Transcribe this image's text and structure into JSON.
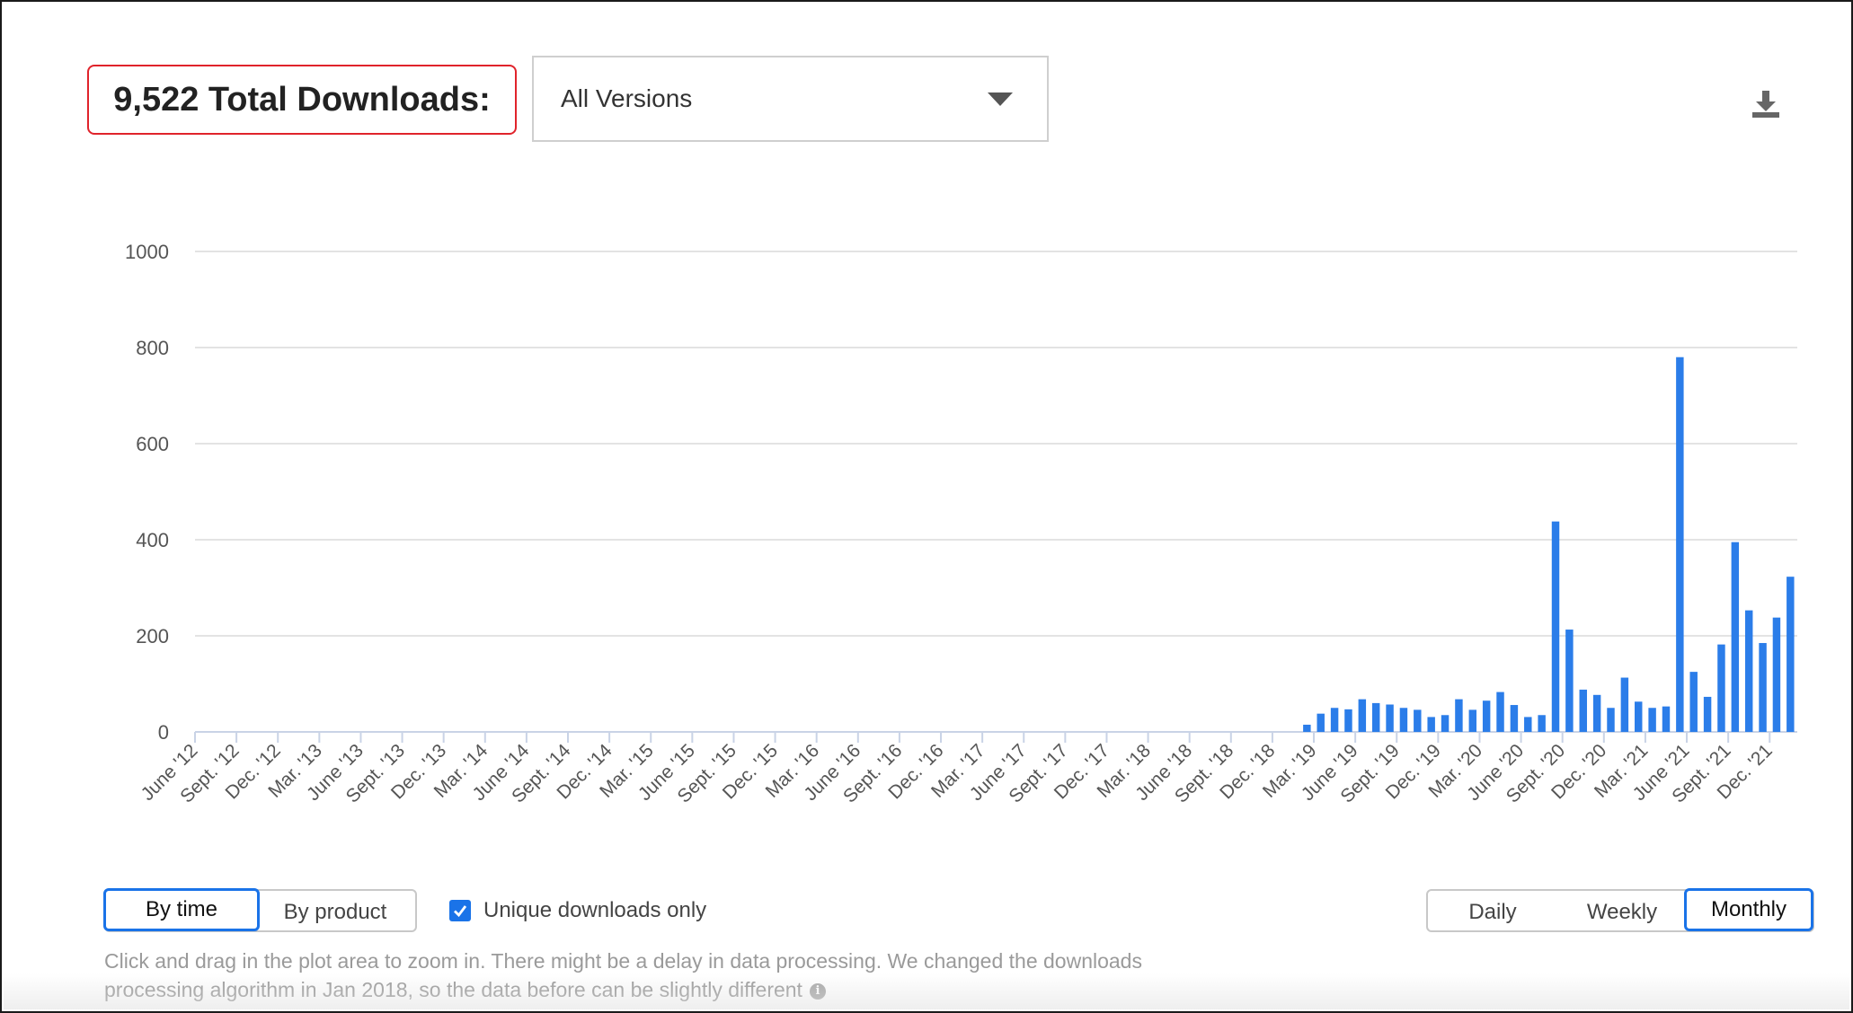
{
  "header": {
    "total_downloads": "9,522 Total Downloads:",
    "version_select": "All Versions",
    "download_icon": "download-icon"
  },
  "chart_data": {
    "type": "bar",
    "title": "",
    "xlabel": "",
    "ylabel": "",
    "ylim": [
      0,
      1000
    ],
    "y_ticks": [
      "0",
      "200",
      "400",
      "600",
      "800",
      "1000"
    ],
    "grid": true,
    "bar_color": "#2b7de9",
    "x_tick_labels": [
      "June '12",
      "Sept. '12",
      "Dec. '12",
      "Mar. '13",
      "June '13",
      "Sept. '13",
      "Dec. '13",
      "Mar. '14",
      "June '14",
      "Sept. '14",
      "Dec. '14",
      "Mar. '15",
      "June '15",
      "Sept. '15",
      "Dec. '15",
      "Mar. '16",
      "June '16",
      "Sept. '16",
      "Dec. '16",
      "Mar. '17",
      "June '17",
      "Sept. '17",
      "Dec. '17",
      "Mar. '18",
      "June '18",
      "Sept. '18",
      "Dec. '18",
      "Mar. '19",
      "June '19",
      "Sept. '19",
      "Dec. '19",
      "Mar. '20",
      "June '20",
      "Sept. '20",
      "Dec. '20",
      "Mar. '21",
      "June '21",
      "Sept. '21",
      "Dec. '21"
    ],
    "values": [
      0,
      0,
      0,
      0,
      0,
      0,
      0,
      0,
      0,
      0,
      0,
      0,
      0,
      0,
      0,
      0,
      0,
      0,
      0,
      0,
      0,
      0,
      0,
      0,
      0,
      0,
      0,
      0,
      0,
      0,
      0,
      0,
      0,
      0,
      0,
      0,
      0,
      0,
      0,
      0,
      0,
      0,
      0,
      0,
      0,
      0,
      0,
      0,
      0,
      0,
      0,
      0,
      0,
      0,
      0,
      0,
      0,
      0,
      0,
      0,
      0,
      0,
      0,
      0,
      0,
      0,
      0,
      0,
      0,
      0,
      0,
      0,
      0,
      0,
      0,
      0,
      0,
      0,
      0,
      0,
      15,
      38,
      50,
      47,
      68,
      60,
      57,
      50,
      46,
      31,
      35,
      68,
      46,
      65,
      83,
      56,
      31,
      35,
      438,
      213,
      88,
      77,
      50,
      113,
      63,
      50,
      53,
      780,
      125,
      73,
      182,
      395,
      253,
      185,
      238,
      323
    ]
  },
  "controls": {
    "view": [
      "By time",
      "By product"
    ],
    "unique_label": "Unique downloads only",
    "period": [
      "Daily",
      "Weekly",
      "Monthly"
    ]
  },
  "note": "Click and drag in the plot area to zoom in. There might be a delay in data processing. We changed the downloads processing algorithm in Jan 2018, so the data before can be slightly different",
  "colors": {
    "accent": "#1a73e8",
    "highlight_border": "#e0232b",
    "bar": "#2b7de9",
    "grid": "#e3e3e3"
  }
}
